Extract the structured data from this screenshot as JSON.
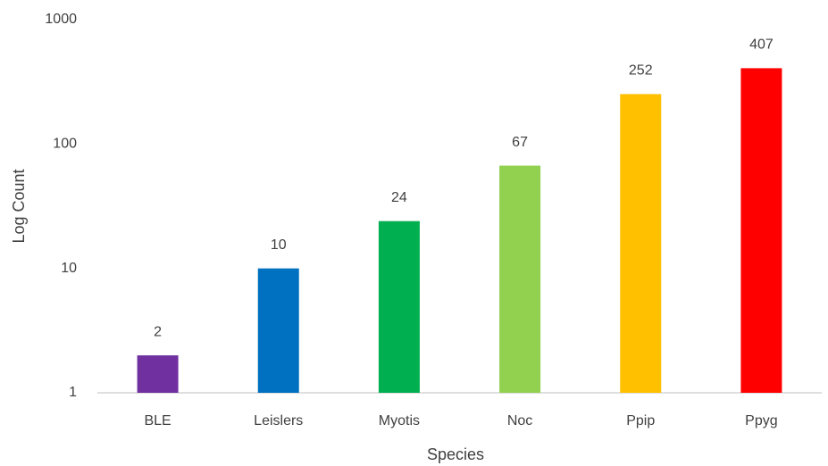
{
  "chart_data": {
    "type": "bar",
    "xlabel": "Species",
    "ylabel": "Log Count",
    "categories": [
      "BLE",
      "Leislers",
      "Myotis",
      "Noc",
      "Ppip",
      "Ppyg"
    ],
    "values": [
      2,
      10,
      24,
      67,
      252,
      407
    ],
    "colors": [
      "#7030a0",
      "#0070c0",
      "#00b050",
      "#92d050",
      "#ffc000",
      "#ff0000"
    ],
    "ylim": [
      1,
      1000
    ],
    "yticks": [
      1,
      10,
      100,
      1000
    ],
    "log_scale": true,
    "grid": false
  }
}
